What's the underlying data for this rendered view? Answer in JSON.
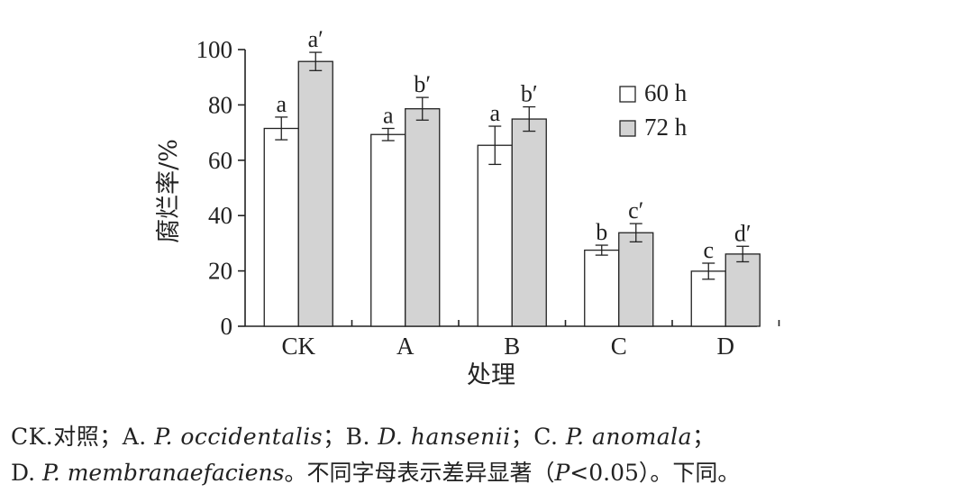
{
  "chart_data": {
    "type": "bar",
    "xlabel": "处理",
    "ylabel": "腐烂率/%",
    "ylim": [
      0,
      100
    ],
    "yticks": [
      0,
      20,
      40,
      60,
      80,
      100
    ],
    "categories": [
      "CK",
      "A",
      "B",
      "C",
      "D"
    ],
    "legend_position": "top-right",
    "series": [
      {
        "name": "60 h",
        "color": "#ffffff",
        "values": [
          71.5,
          69.3,
          65.4,
          27.5,
          19.9
        ],
        "errors": [
          4.1,
          2.2,
          6.9,
          1.8,
          2.9
        ],
        "labels": [
          "a",
          "a",
          "a",
          "b",
          "c"
        ]
      },
      {
        "name": "72 h",
        "color": "#d3d3d3",
        "values": [
          95.7,
          78.6,
          74.9,
          33.8,
          26.1
        ],
        "errors": [
          3.3,
          4.1,
          4.4,
          3.3,
          2.8
        ],
        "labels": [
          "a′",
          "b′",
          "b′",
          "c′",
          "d′"
        ]
      }
    ]
  },
  "caption": {
    "line1": [
      {
        "t": "CK.对照；A. ",
        "i": false
      },
      {
        "t": "P. occidentalis",
        "i": true
      },
      {
        "t": "；B. ",
        "i": false
      },
      {
        "t": "D. hansenii",
        "i": true
      },
      {
        "t": "；C. ",
        "i": false
      },
      {
        "t": "P. anomala",
        "i": true
      },
      {
        "t": "；",
        "i": false
      }
    ],
    "line2": [
      {
        "t": "D. ",
        "i": false
      },
      {
        "t": "P. membranaefaciens",
        "i": true
      },
      {
        "t": "。不同字母表示差异显著（",
        "i": false
      },
      {
        "t": "P",
        "i": true
      },
      {
        "t": "<0.05）。下同。",
        "i": false
      }
    ]
  }
}
